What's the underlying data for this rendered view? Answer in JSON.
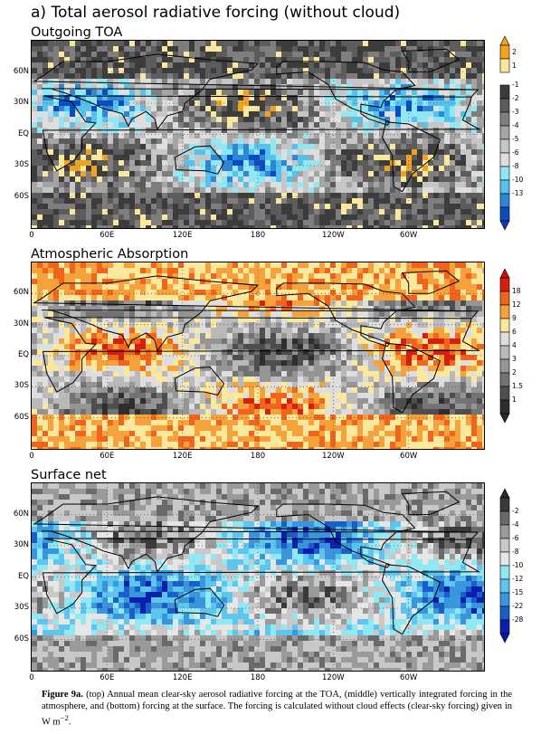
{
  "title": "a) Total aerosol radiative forcing (without cloud)",
  "lat_labels": [
    "60N",
    "30N",
    "EQ",
    "30S",
    "60S"
  ],
  "lon_labels": [
    "0",
    "60E",
    "120E",
    "180",
    "120W",
    "60W"
  ],
  "panels": [
    {
      "title": "Outgoing TOA",
      "colorbar": {
        "top_labels": [
          "2",
          "1"
        ],
        "labels": [
          "-1",
          "-2",
          "-3",
          "-4",
          "-5",
          "-6",
          "-8",
          "-10",
          "-13"
        ],
        "colors": [
          "#f2a21d",
          "#fbe89c",
          "#3c3c3c",
          "#5c5c5c",
          "#7e7e7e",
          "#a4a4a4",
          "#c6c6c6",
          "#dedede",
          "#8fe8f3",
          "#55c2ee",
          "#2d86d6",
          "#0a4bc1"
        ],
        "upper_arrow": "#f2a21d",
        "lower_arrow": "#0a3cae"
      }
    },
    {
      "title": "Atmospheric Absorption",
      "colorbar": {
        "labels": [
          "18",
          "12",
          "9",
          "6",
          "4",
          "3",
          "2",
          "1.5",
          "1"
        ],
        "colors": [
          "#d6200d",
          "#f0641c",
          "#f6a23c",
          "#fbe89c",
          "#dedede",
          "#b9b9b9",
          "#959595",
          "#737373",
          "#4e4e4e",
          "#2e2e2e"
        ],
        "upper_arrow": "#c7130a",
        "lower_arrow": "#262626"
      }
    },
    {
      "title": "Surface net",
      "colorbar": {
        "labels": [
          "-2",
          "-4",
          "-6",
          "-8",
          "-10",
          "-12",
          "-15",
          "-22",
          "-28"
        ],
        "colors": [
          "#3a3a3a",
          "#6a6a6a",
          "#9a9a9a",
          "#c8c8c8",
          "#e6e6e6",
          "#8fe8f3",
          "#5ec6ee",
          "#3996dc",
          "#1a5fc8",
          "#0a1fb0"
        ],
        "upper_arrow": "#2a2a2a",
        "lower_arrow": "#0a14a8"
      }
    }
  ],
  "caption": {
    "figure_label": "Figure 9a.",
    "text": "(top) Annual mean clear-sky aerosol radiative forcing at the TOA, (middle) vertically integrated forcing in the atmosphere, and (bottom) forcing at the surface. The forcing is calculated without cloud effects (clear-sky forcing) given in W m",
    "superscript": "−2",
    "end": "."
  }
}
